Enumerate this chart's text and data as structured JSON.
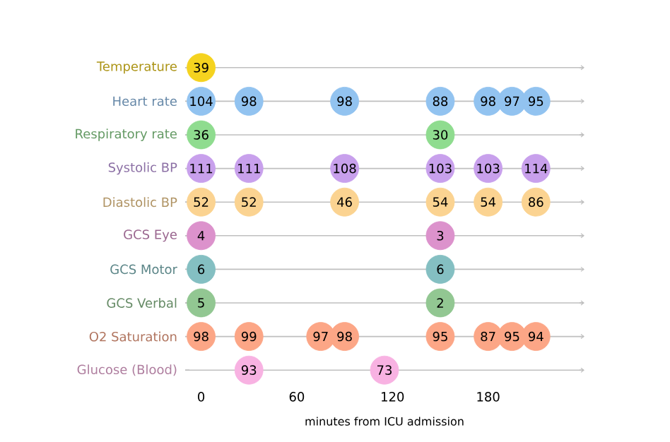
{
  "chart_data": {
    "type": "scatter",
    "orientation": "horizontal",
    "categories": [
      "Temperature",
      "Heart rate",
      "Respiratory rate",
      "Systolic BP",
      "Diastolic BP",
      "GCS Eye",
      "GCS Motor",
      "GCS Verbal",
      "O2 Saturation",
      "Glucose (Blood)"
    ],
    "xlabel": "minutes from ICU admission",
    "xlim": [
      -10,
      240
    ],
    "xticks": [
      0,
      60,
      120,
      180
    ],
    "marker": "circle",
    "grid": "y",
    "series": [
      {
        "color": "#f5d31f",
        "x": [
          "Temperature"
        ],
        "values": [
          0
        ]
      },
      {
        "color": "#92c3f0",
        "x": [
          "Heart rate",
          "Heart rate",
          "Heart rate",
          "Heart rate",
          "Heart rate",
          "Heart rate",
          "Heart rate"
        ],
        "values": [
          0,
          30,
          90,
          150,
          180,
          195,
          210
        ]
      },
      {
        "color": "#8fdc8f",
        "x": [
          "Respiratory rate",
          "Respiratory rate"
        ],
        "values": [
          0,
          150
        ]
      },
      {
        "color": "#c8a0ec",
        "x": [
          "Systolic BP",
          "Systolic BP",
          "Systolic BP",
          "Systolic BP",
          "Systolic BP",
          "Systolic BP"
        ],
        "values": [
          0,
          30,
          90,
          150,
          180,
          210
        ]
      },
      {
        "color": "#fbd391",
        "x": [
          "Diastolic BP",
          "Diastolic BP",
          "Diastolic BP",
          "Diastolic BP",
          "Diastolic BP",
          "Diastolic BP"
        ],
        "values": [
          0,
          30,
          90,
          150,
          180,
          210
        ]
      },
      {
        "color": "#dc92cc",
        "x": [
          "GCS Eye",
          "GCS Eye"
        ],
        "values": [
          0,
          150
        ]
      },
      {
        "color": "#84bfc2",
        "x": [
          "GCS Motor",
          "GCS Motor"
        ],
        "values": [
          0,
          150
        ]
      },
      {
        "color": "#92c792",
        "x": [
          "GCS Verbal",
          "GCS Verbal"
        ],
        "values": [
          0,
          150
        ]
      },
      {
        "color": "#fca686",
        "x": [
          "O2 Saturation",
          "O2 Saturation",
          "O2 Saturation",
          "O2 Saturation",
          "O2 Saturation",
          "O2 Saturation",
          "O2 Saturation",
          "O2 Saturation"
        ],
        "values": [
          0,
          30,
          75,
          90,
          150,
          180,
          195,
          210
        ]
      },
      {
        "color": "#f8b2e2",
        "x": [
          "Glucose (Blood)",
          "Glucose (Blood)"
        ],
        "values": [
          30,
          115
        ]
      }
    ],
    "annotations": [
      {
        "text": "39",
        "x": 0,
        "y": "Temperature"
      },
      {
        "text": "104",
        "x": 0,
        "y": "Heart rate"
      },
      {
        "text": "98",
        "x": 30,
        "y": "Heart rate"
      },
      {
        "text": "98",
        "x": 90,
        "y": "Heart rate"
      },
      {
        "text": "88",
        "x": 150,
        "y": "Heart rate"
      },
      {
        "text": "98",
        "x": 180,
        "y": "Heart rate"
      },
      {
        "text": "97",
        "x": 195,
        "y": "Heart rate"
      },
      {
        "text": "95",
        "x": 210,
        "y": "Heart rate"
      },
      {
        "text": "36",
        "x": 0,
        "y": "Respiratory rate"
      },
      {
        "text": "30",
        "x": 150,
        "y": "Respiratory rate"
      },
      {
        "text": "111",
        "x": 0,
        "y": "Systolic BP"
      },
      {
        "text": "111",
        "x": 30,
        "y": "Systolic BP"
      },
      {
        "text": "108",
        "x": 90,
        "y": "Systolic BP"
      },
      {
        "text": "103",
        "x": 150,
        "y": "Systolic BP"
      },
      {
        "text": "103",
        "x": 180,
        "y": "Systolic BP"
      },
      {
        "text": "114",
        "x": 210,
        "y": "Systolic BP"
      },
      {
        "text": "52",
        "x": 0,
        "y": "Diastolic BP"
      },
      {
        "text": "52",
        "x": 30,
        "y": "Diastolic BP"
      },
      {
        "text": "46",
        "x": 90,
        "y": "Diastolic BP"
      },
      {
        "text": "54",
        "x": 150,
        "y": "Diastolic BP"
      },
      {
        "text": "54",
        "x": 180,
        "y": "Diastolic BP"
      },
      {
        "text": "86",
        "x": 210,
        "y": "Diastolic BP"
      },
      {
        "text": "4",
        "x": 0,
        "y": "GCS Eye"
      },
      {
        "text": "3",
        "x": 150,
        "y": "GCS Eye"
      },
      {
        "text": "6",
        "x": 0,
        "y": "GCS Motor"
      },
      {
        "text": "6",
        "x": 150,
        "y": "GCS Motor"
      },
      {
        "text": "5",
        "x": 0,
        "y": "GCS Verbal"
      },
      {
        "text": "2",
        "x": 150,
        "y": "GCS Verbal"
      },
      {
        "text": "98",
        "x": 0,
        "y": "O2 Saturation"
      },
      {
        "text": "99",
        "x": 30,
        "y": "O2 Saturation"
      },
      {
        "text": "97",
        "x": 75,
        "y": "O2 Saturation"
      },
      {
        "text": "98",
        "x": 90,
        "y": "O2 Saturation"
      },
      {
        "text": "95",
        "x": 150,
        "y": "O2 Saturation"
      },
      {
        "text": "87",
        "x": 180,
        "y": "O2 Saturation"
      },
      {
        "text": "95",
        "x": 195,
        "y": "O2 Saturation"
      },
      {
        "text": "94",
        "x": 210,
        "y": "O2 Saturation"
      },
      {
        "text": "93",
        "x": 30,
        "y": "Glucose (Blood)"
      },
      {
        "text": "73",
        "x": 115,
        "y": "Glucose (Blood)"
      }
    ]
  }
}
